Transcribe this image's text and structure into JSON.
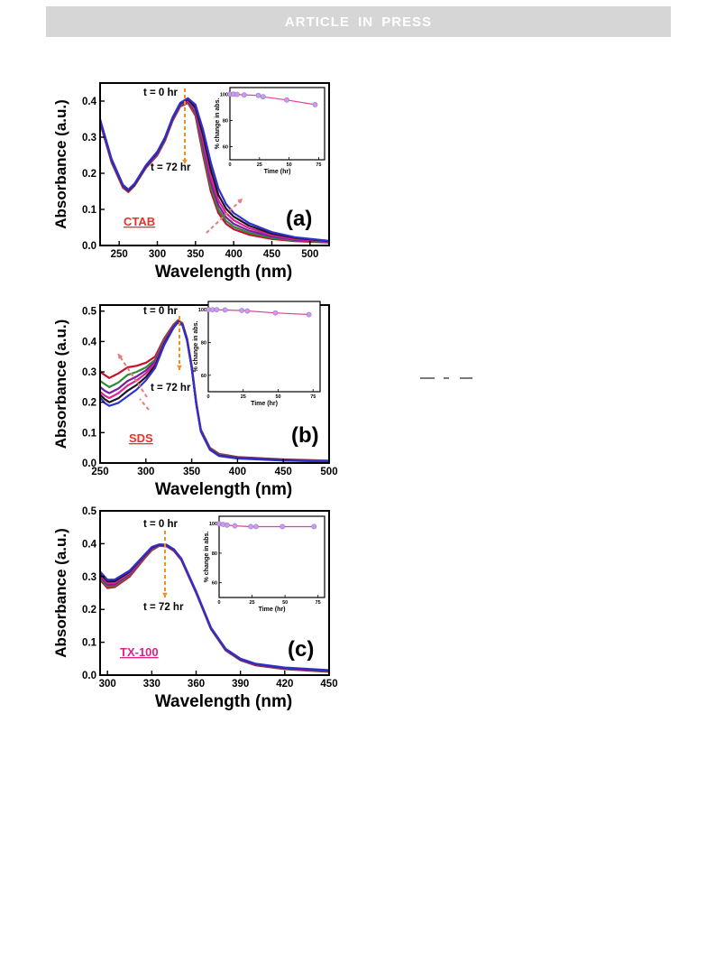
{
  "header": {
    "banner": "ARTICLE  IN  PRESS"
  },
  "colors": {
    "banner_bg": "#d6d6d6",
    "arrow_orange": "#f0901e",
    "arrow_pink": "#e87a7a",
    "surfactant_red": "#e8322a",
    "surfactant_magenta": "#e0208c",
    "inset_line": "#e0409a",
    "inset_marker": "#c89ee8",
    "series": [
      "#c8102e",
      "#2e8b3a",
      "#7b1fa2",
      "#e0209a",
      "#1a1a1a",
      "#3030d0"
    ]
  },
  "chart_data": [
    {
      "id": "a",
      "type": "line",
      "panel_label": "(a)",
      "surfactant": "CTAB",
      "xlabel": "Wavelength (nm)",
      "ylabel": "Absorbance (a.u.)",
      "xlim": [
        225,
        525
      ],
      "ylim": [
        0,
        0.45
      ],
      "xticks": [
        250,
        300,
        350,
        400,
        450,
        500
      ],
      "yticks": [
        0.0,
        0.1,
        0.2,
        0.3,
        0.4
      ],
      "ytick_labels": [
        "0.0",
        "0.1",
        "0.2",
        "0.3",
        "0.4"
      ],
      "annotations": {
        "start": "t = 0 hr",
        "end": "t = 72 hr"
      },
      "x": [
        225,
        240,
        255,
        262,
        270,
        285,
        300,
        310,
        320,
        330,
        340,
        350,
        360,
        370,
        380,
        390,
        400,
        420,
        450,
        480,
        525
      ],
      "series": [
        {
          "values": [
            0.34,
            0.23,
            0.16,
            0.148,
            0.165,
            0.215,
            0.25,
            0.29,
            0.345,
            0.385,
            0.395,
            0.36,
            0.25,
            0.15,
            0.09,
            0.06,
            0.045,
            0.03,
            0.018,
            0.012,
            0.008
          ]
        },
        {
          "values": [
            0.342,
            0.232,
            0.162,
            0.15,
            0.166,
            0.216,
            0.252,
            0.292,
            0.347,
            0.387,
            0.398,
            0.365,
            0.262,
            0.162,
            0.1,
            0.068,
            0.052,
            0.035,
            0.021,
            0.014,
            0.009
          ]
        },
        {
          "values": [
            0.344,
            0.234,
            0.163,
            0.151,
            0.167,
            0.217,
            0.254,
            0.294,
            0.349,
            0.389,
            0.4,
            0.37,
            0.275,
            0.175,
            0.112,
            0.078,
            0.06,
            0.041,
            0.025,
            0.016,
            0.01
          ]
        },
        {
          "values": [
            0.346,
            0.236,
            0.165,
            0.152,
            0.168,
            0.218,
            0.256,
            0.296,
            0.351,
            0.391,
            0.403,
            0.375,
            0.29,
            0.19,
            0.125,
            0.09,
            0.07,
            0.048,
            0.029,
            0.018,
            0.011
          ]
        },
        {
          "values": [
            0.348,
            0.238,
            0.166,
            0.153,
            0.169,
            0.22,
            0.258,
            0.298,
            0.353,
            0.393,
            0.405,
            0.382,
            0.305,
            0.21,
            0.14,
            0.102,
            0.08,
            0.055,
            0.033,
            0.021,
            0.012
          ]
        },
        {
          "values": [
            0.35,
            0.24,
            0.168,
            0.155,
            0.171,
            0.222,
            0.26,
            0.3,
            0.355,
            0.395,
            0.408,
            0.39,
            0.32,
            0.23,
            0.158,
            0.115,
            0.09,
            0.062,
            0.037,
            0.023,
            0.013
          ]
        }
      ],
      "inset": {
        "xlabel": "Time (hr)",
        "ylabel": "% change in abs.",
        "xlim": [
          0,
          80
        ],
        "ylim": [
          50,
          105
        ],
        "xticks": [
          0,
          25,
          50,
          75
        ],
        "yticks": [
          60,
          80,
          100
        ],
        "x": [
          0,
          3,
          6,
          12,
          24,
          28,
          48,
          72
        ],
        "y": [
          100,
          100,
          99.8,
          99.4,
          99,
          98,
          95.5,
          92
        ]
      }
    },
    {
      "id": "b",
      "type": "line",
      "panel_label": "(b)",
      "surfactant": "SDS",
      "xlabel": "Wavelength (nm)",
      "ylabel": "Absorbance (a.u.)",
      "xlim": [
        250,
        500
      ],
      "ylim": [
        0,
        0.52
      ],
      "xticks": [
        250,
        300,
        350,
        400,
        450,
        500
      ],
      "yticks": [
        0.0,
        0.1,
        0.2,
        0.3,
        0.4,
        0.5
      ],
      "ytick_labels": [
        "0.0",
        "0.1",
        "0.2",
        "0.3",
        "0.4",
        "0.5"
      ],
      "annotations": {
        "start": "t = 0 hr",
        "end": "t = 72 hr"
      },
      "x": [
        250,
        255,
        260,
        270,
        280,
        290,
        300,
        310,
        320,
        330,
        335,
        340,
        345,
        350,
        355,
        360,
        370,
        380,
        400,
        450,
        500
      ],
      "series": [
        {
          "values": [
            0.3,
            0.29,
            0.28,
            0.295,
            0.315,
            0.32,
            0.33,
            0.35,
            0.41,
            0.455,
            0.47,
            0.46,
            0.41,
            0.32,
            0.2,
            0.11,
            0.05,
            0.03,
            0.02,
            0.012,
            0.008
          ]
        },
        {
          "values": [
            0.27,
            0.26,
            0.25,
            0.265,
            0.29,
            0.3,
            0.315,
            0.34,
            0.405,
            0.452,
            0.468,
            0.458,
            0.408,
            0.318,
            0.198,
            0.108,
            0.048,
            0.028,
            0.019,
            0.011,
            0.007
          ]
        },
        {
          "values": [
            0.25,
            0.238,
            0.23,
            0.245,
            0.27,
            0.285,
            0.305,
            0.333,
            0.4,
            0.45,
            0.466,
            0.456,
            0.406,
            0.316,
            0.196,
            0.106,
            0.046,
            0.026,
            0.018,
            0.01,
            0.006
          ]
        },
        {
          "values": [
            0.235,
            0.222,
            0.214,
            0.23,
            0.255,
            0.272,
            0.295,
            0.327,
            0.396,
            0.448,
            0.465,
            0.455,
            0.405,
            0.315,
            0.195,
            0.105,
            0.045,
            0.025,
            0.017,
            0.009,
            0.006
          ]
        },
        {
          "values": [
            0.225,
            0.21,
            0.2,
            0.213,
            0.238,
            0.257,
            0.283,
            0.32,
            0.392,
            0.446,
            0.464,
            0.454,
            0.404,
            0.314,
            0.194,
            0.104,
            0.044,
            0.024,
            0.016,
            0.009,
            0.005
          ]
        },
        {
          "values": [
            0.215,
            0.198,
            0.188,
            0.198,
            0.22,
            0.242,
            0.272,
            0.313,
            0.388,
            0.444,
            0.463,
            0.453,
            0.403,
            0.313,
            0.193,
            0.103,
            0.043,
            0.023,
            0.015,
            0.008,
            0.005
          ]
        }
      ],
      "inset": {
        "xlabel": "Time (hr)",
        "ylabel": "% change in abs.",
        "xlim": [
          0,
          80
        ],
        "ylim": [
          50,
          105
        ],
        "xticks": [
          0,
          25,
          50,
          75
        ],
        "yticks": [
          60,
          80,
          100
        ],
        "x": [
          0,
          3,
          6,
          12,
          24,
          28,
          48,
          72
        ],
        "y": [
          100,
          100,
          100,
          99.8,
          99.5,
          99.2,
          98,
          97
        ]
      }
    },
    {
      "id": "c",
      "type": "line",
      "panel_label": "(c)",
      "surfactant": "TX-100",
      "xlabel": "Wavelength (nm)",
      "ylabel": "Absorbance (a.u.)",
      "xlim": [
        295,
        450
      ],
      "ylim": [
        0,
        0.5
      ],
      "xticks": [
        300,
        330,
        360,
        390,
        420,
        450
      ],
      "yticks": [
        0.0,
        0.1,
        0.2,
        0.3,
        0.4,
        0.5
      ],
      "ytick_labels": [
        "0.0",
        "0.1",
        "0.2",
        "0.3",
        "0.4",
        "0.5"
      ],
      "annotations": {
        "start": "t = 0 hr",
        "end": "t = 72 hr"
      },
      "x": [
        295,
        300,
        305,
        315,
        325,
        330,
        335,
        340,
        345,
        350,
        360,
        370,
        380,
        390,
        400,
        420,
        450
      ],
      "series": [
        {
          "values": [
            0.29,
            0.265,
            0.268,
            0.3,
            0.355,
            0.38,
            0.393,
            0.392,
            0.378,
            0.35,
            0.25,
            0.14,
            0.075,
            0.045,
            0.03,
            0.018,
            0.01
          ]
        },
        {
          "values": [
            0.295,
            0.27,
            0.272,
            0.305,
            0.358,
            0.382,
            0.394,
            0.393,
            0.379,
            0.351,
            0.251,
            0.141,
            0.076,
            0.046,
            0.031,
            0.019,
            0.011
          ]
        },
        {
          "values": [
            0.3,
            0.275,
            0.276,
            0.308,
            0.36,
            0.384,
            0.395,
            0.394,
            0.38,
            0.352,
            0.252,
            0.142,
            0.077,
            0.047,
            0.032,
            0.02,
            0.012
          ]
        },
        {
          "values": [
            0.305,
            0.28,
            0.281,
            0.311,
            0.362,
            0.386,
            0.396,
            0.395,
            0.381,
            0.353,
            0.253,
            0.143,
            0.078,
            0.048,
            0.033,
            0.021,
            0.013
          ]
        },
        {
          "values": [
            0.31,
            0.285,
            0.286,
            0.315,
            0.364,
            0.388,
            0.397,
            0.396,
            0.382,
            0.354,
            0.254,
            0.144,
            0.079,
            0.049,
            0.034,
            0.022,
            0.014
          ]
        },
        {
          "values": [
            0.315,
            0.29,
            0.291,
            0.318,
            0.366,
            0.39,
            0.398,
            0.397,
            0.383,
            0.355,
            0.255,
            0.145,
            0.08,
            0.05,
            0.035,
            0.023,
            0.015
          ]
        }
      ],
      "inset": {
        "xlabel": "Time (hr)",
        "ylabel": "% change in abs.",
        "xlim": [
          0,
          80
        ],
        "ylim": [
          50,
          105
        ],
        "xticks": [
          0,
          25,
          50,
          75
        ],
        "yticks": [
          60,
          80,
          100
        ],
        "x": [
          0,
          3,
          6,
          12,
          24,
          28,
          48,
          72
        ],
        "y": [
          100,
          99.5,
          99,
          98.5,
          98,
          98,
          98,
          98
        ]
      }
    }
  ]
}
